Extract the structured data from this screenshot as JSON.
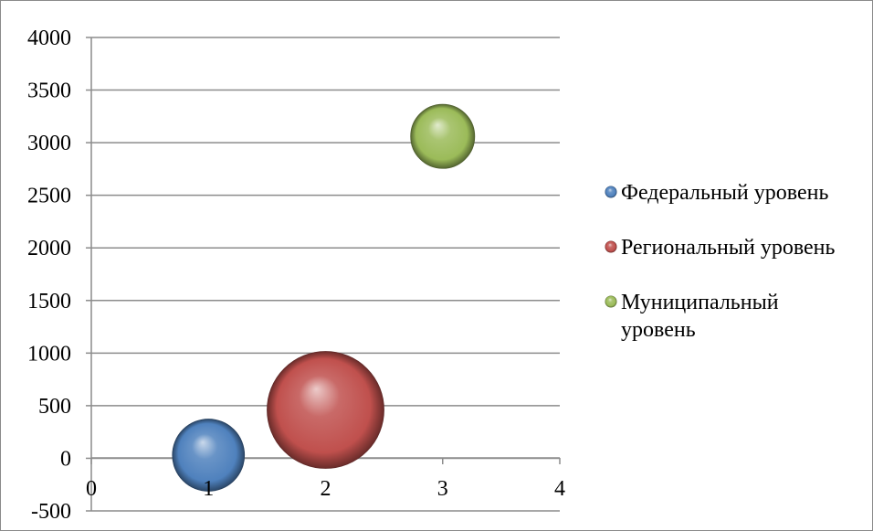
{
  "chart_data": {
    "type": "bubble",
    "title": "",
    "xlabel": "",
    "ylabel": "",
    "xlim": [
      0,
      4
    ],
    "ylim": [
      -500,
      4000
    ],
    "x_ticks": [
      0,
      1,
      2,
      3,
      4
    ],
    "y_ticks": [
      -500,
      0,
      500,
      1000,
      1500,
      2000,
      2500,
      3000,
      3500,
      4000
    ],
    "grid": "horizontal",
    "legend_position": "right",
    "series": [
      {
        "name": "Федеральный уровень",
        "x": 1,
        "y": 30,
        "size": 38,
        "color": "#4f81bd"
      },
      {
        "name": "Региональный уровень",
        "x": 2,
        "y": 460,
        "size": 100,
        "color": "#c0504d"
      },
      {
        "name": "Муниципальный уровень",
        "x": 3,
        "y": 3060,
        "size": 30,
        "color": "#9bbb59"
      }
    ]
  }
}
